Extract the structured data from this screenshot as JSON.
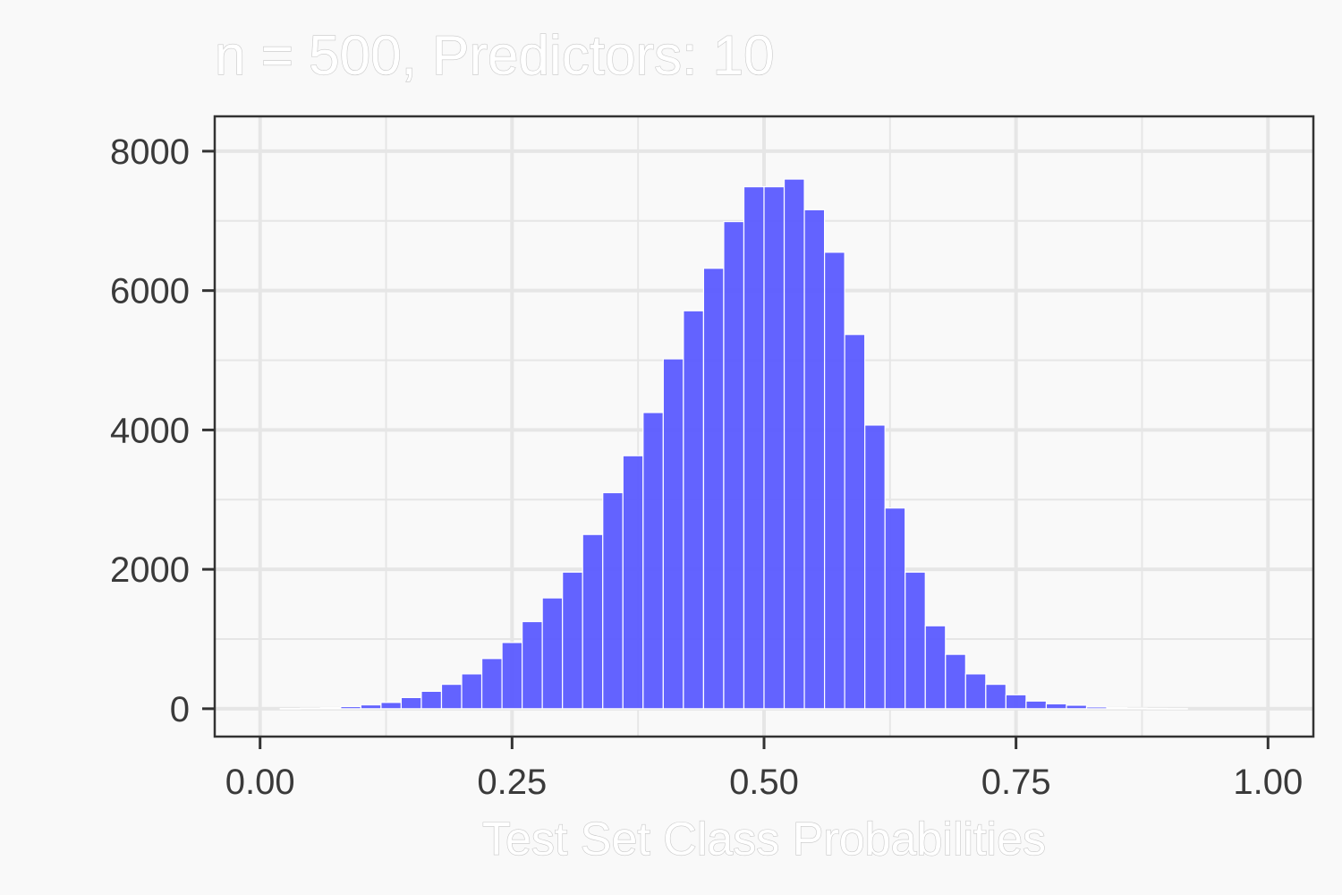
{
  "chart_data": {
    "type": "bar",
    "title": "n = 500, Predictors: 10",
    "xlabel": "Test Set Class Probabilities",
    "ylabel": "",
    "xlim": [
      -0.045,
      1.045
    ],
    "ylim": [
      -400,
      8500
    ],
    "x_ticks": [
      0.0,
      0.25,
      0.5,
      0.75,
      1.0
    ],
    "x_tick_labels": [
      "0.00",
      "0.25",
      "0.50",
      "0.75",
      "1.00"
    ],
    "y_ticks": [
      0,
      2000,
      4000,
      6000,
      8000
    ],
    "y_tick_labels": [
      "0",
      "2000",
      "4000",
      "6000",
      "8000"
    ],
    "bin_width": 0.02,
    "bin_centers": [
      0.03,
      0.05,
      0.07,
      0.09,
      0.11,
      0.13,
      0.15,
      0.17,
      0.19,
      0.21,
      0.23,
      0.25,
      0.27,
      0.29,
      0.31,
      0.33,
      0.35,
      0.37,
      0.39,
      0.41,
      0.43,
      0.45,
      0.47,
      0.49,
      0.51,
      0.53,
      0.55,
      0.57,
      0.59,
      0.61,
      0.63,
      0.65,
      0.67,
      0.69,
      0.71,
      0.73,
      0.75,
      0.77,
      0.79,
      0.81,
      0.83,
      0.85,
      0.87,
      0.89,
      0.91
    ],
    "values": [
      3,
      8,
      15,
      30,
      55,
      90,
      160,
      250,
      350,
      500,
      720,
      950,
      1250,
      1590,
      1960,
      2500,
      3100,
      3630,
      4250,
      5020,
      5710,
      6320,
      6990,
      7490,
      7490,
      7600,
      7160,
      6550,
      5370,
      4070,
      2880,
      1960,
      1190,
      780,
      500,
      350,
      200,
      110,
      70,
      50,
      25,
      15,
      8,
      4,
      2
    ],
    "bar_color": "#5b5bff",
    "grid": true,
    "panel_background": "#f9f9f9",
    "gridline_color": "#e6e6e6"
  }
}
